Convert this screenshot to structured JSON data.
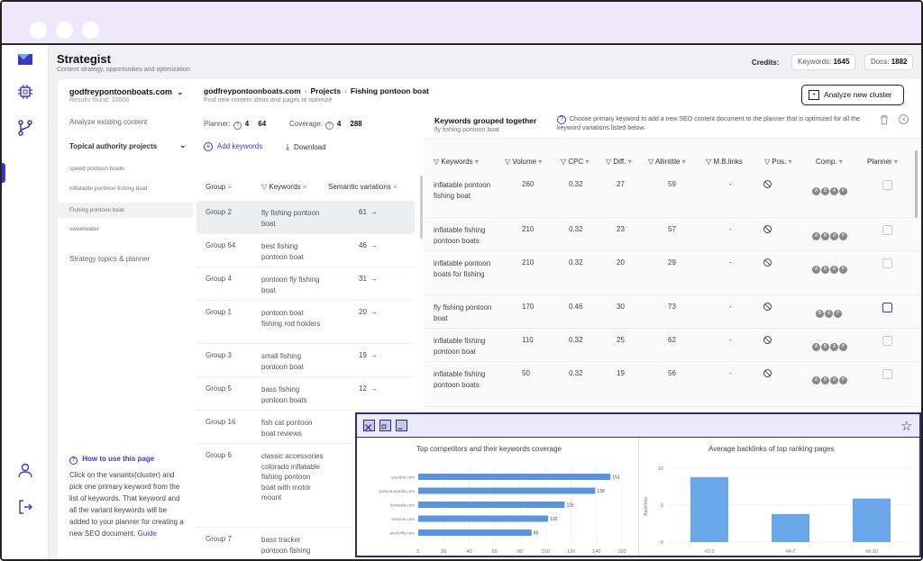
{
  "app": {
    "title": "Strategist",
    "subtitle": "Content strategy, opportunities and optimization",
    "credits_label": "Credits:",
    "keywords_credit_label": "Keywords:",
    "keywords_credit_value": "1645",
    "docs_credit_label": "Docs:",
    "docs_credit_value": "1882",
    "accent": "#3b39c4"
  },
  "sidebar": {
    "domain": "godfreypontoonboats.com",
    "results": "Results found: 10006",
    "analyze": "Analyze existing content",
    "topical": "Topical authority projects",
    "projects": [
      "speed pontoon boats",
      "inflatable pontoon fishing boat",
      "Fishing pontoon boat",
      "sweetwater"
    ],
    "strategy": "Strategy topics & planner",
    "help_title": "How to use this page",
    "help_body": "Click on the variants(cluster) and pick one primary keyword from the list of keywords. That keyword and all the variant keywords will be added to your planner for creating a new SEO document.",
    "help_link": "Guide"
  },
  "breadcrumb": {
    "domain": "godfreypontoonboats.com",
    "projects": "Projects",
    "current": "Fishing pontoon boat",
    "sub": "Find new content ideas and pages to optimize"
  },
  "stats": {
    "planner_label": "Planner:",
    "planner_a": "4",
    "planner_b": "64",
    "coverage_label": "Coverage:",
    "coverage_a": "4",
    "coverage_b": "288"
  },
  "actions": {
    "add_keywords": "Add keywords",
    "download": "Download",
    "analyze_cluster": "Analyze new cluster"
  },
  "groups": {
    "headers": {
      "group": "Group",
      "keywords": "Keywords",
      "semantic": "Semantic variations"
    },
    "rows": [
      {
        "name": "Group 2",
        "kw": "fly fishing pontoon boat",
        "sv": "61"
      },
      {
        "name": "Group 64",
        "kw": "best fishing pontoon boat",
        "sv": "46"
      },
      {
        "name": "Group 4",
        "kw": "pontoon fly fishing boat",
        "sv": "31"
      },
      {
        "name": "Group 1",
        "kw": "pontoon boat fishing rod holders",
        "sv": "20"
      },
      {
        "name": "Group 3",
        "kw": "small fishing pontoon boat",
        "sv": "19"
      },
      {
        "name": "Group 5",
        "kw": "bass fishing pontoon boats",
        "sv": "12"
      },
      {
        "name": "Group 16",
        "kw": "fish cat pontoon boat reviews",
        "sv": ""
      },
      {
        "name": "Group 6",
        "kw": "classic accessories colorado inflatable fishing pontoon boat with motor mount",
        "sv": ""
      },
      {
        "name": "Group 7",
        "kw": "bass tracker pontoon fishing",
        "sv": ""
      }
    ]
  },
  "kw_panel": {
    "title": "Keywords grouped together",
    "sub": "fly fishing pontoon boat",
    "hint": "Choose primary keyword to add a new SEO content document to the planner that is optimized for all the keyword variations listed below.",
    "headers": {
      "keywords": "Keywords",
      "volume": "Volume",
      "cpc": "CPC",
      "diff": "Diff.",
      "allintitle": "Allintitle",
      "mblinks": "M.B.links",
      "pos": "Pos.",
      "comp": "Comp.",
      "planner": "Planner"
    },
    "rows": [
      {
        "kw": "inflatable pontoon fishing boat",
        "volume": "260",
        "cpc": "0.32",
        "diff": "27",
        "allintitle": "59",
        "mb": "-",
        "comp": [
          "A",
          "B",
          "A",
          "P"
        ]
      },
      {
        "kw": "inflatable fishing pontoon boats",
        "volume": "210",
        "cpc": "0.32",
        "diff": "23",
        "allintitle": "57",
        "mb": "-",
        "comp": [
          "A",
          "B",
          "A",
          "P"
        ]
      },
      {
        "kw": "inflatable pontoon boats for fishing",
        "volume": "210",
        "cpc": "0.32",
        "diff": "20",
        "allintitle": "29",
        "mb": "-",
        "comp": [
          "A",
          "B",
          "A",
          "P"
        ]
      },
      {
        "kw": "fly fishing pontoon boat",
        "volume": "170",
        "cpc": "0.46",
        "diff": "30",
        "allintitle": "73",
        "mb": "-",
        "comp": [
          "B",
          "A",
          "P"
        ]
      },
      {
        "kw": "inflatable fishing pontoon boat",
        "volume": "110",
        "cpc": "0.32",
        "diff": "25",
        "allintitle": "62",
        "mb": "-",
        "comp": [
          "A",
          "B",
          "A",
          "P"
        ]
      },
      {
        "kw": "inflatable fishing pontoon boats",
        "volume": "50",
        "cpc": "0.32",
        "diff": "19",
        "allintitle": "56",
        "mb": "-",
        "comp": [
          "A",
          "B",
          "A",
          "P"
        ]
      }
    ]
  },
  "chart_data": [
    {
      "type": "bar",
      "orientation": "horizontal",
      "title": "Top competitors and their keywords coverage",
      "categories": [
        "youtube.com",
        "pontoonopedia.com",
        "boatsafe.com",
        "amazon.com",
        "anchorfly.com"
      ],
      "values": [
        151,
        139,
        115,
        102,
        89
      ],
      "xlim": [
        0,
        160
      ],
      "xticks": [
        0,
        20,
        40,
        60,
        80,
        100,
        120,
        140,
        160
      ],
      "bar_color": "#5b93df"
    },
    {
      "type": "bar",
      "title": "Average backlinks of top ranking pages",
      "categories": [
        "#1-3",
        "#4-7",
        "#8-10"
      ],
      "values": [
        8.8,
        3.8,
        5.9
      ],
      "ylabel": "Backlinks",
      "ylim": [
        0,
        10
      ],
      "yticks": [
        0,
        5,
        10
      ],
      "bar_color": "#6aa6e8"
    }
  ]
}
